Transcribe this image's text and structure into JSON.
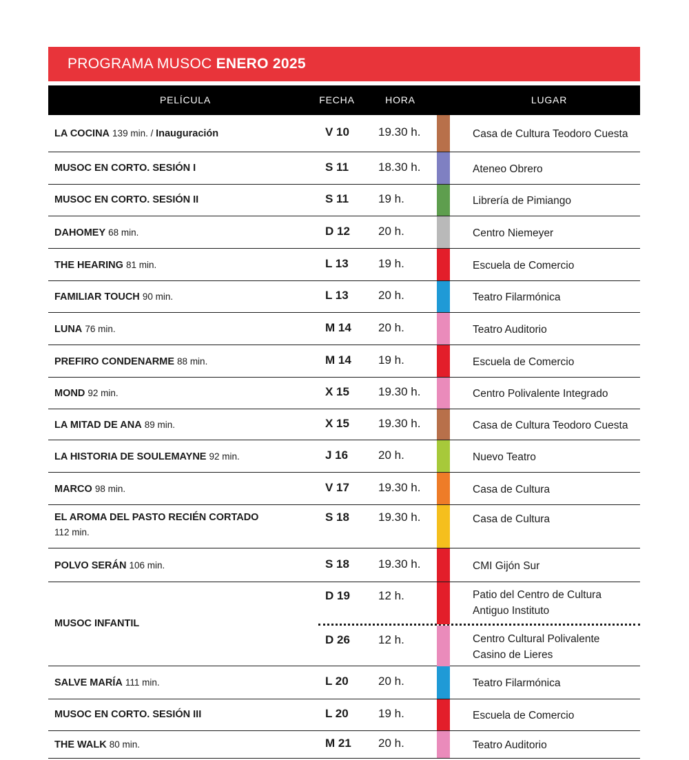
{
  "banner": {
    "title_regular": "PROGRAMA MUSOC",
    "title_bold": "ENERO 2025",
    "color": "#e8343a"
  },
  "columns": {
    "pelicula": "PELÍCULA",
    "fecha": "FECHA",
    "hora": "HORA",
    "lugar": "LUGAR"
  },
  "rows": [
    {
      "title": "LA COCINA",
      "minutes": "139 min.",
      "sep": " / ",
      "extra": "Inauguración",
      "fecha": "V 10",
      "hora": "19.30 h.",
      "lugar": "Casa de Cultura Teodoro Cuesta",
      "color": "#b8704a"
    },
    {
      "title": "MUSOC EN CORTO. SESIÓN I",
      "minutes": "",
      "fecha": "S 11",
      "hora": "18.30 h.",
      "lugar": "Ateneo Obrero",
      "color": "#7f80c2"
    },
    {
      "title": "MUSOC EN CORTO. SESIÓN II",
      "minutes": "",
      "fecha": "S 11",
      "hora": "19 h.",
      "lugar": "Librería de Pimiango",
      "color": "#5e9e4e"
    },
    {
      "title": "DAHOMEY",
      "minutes": "68 min.",
      "fecha": "D 12",
      "hora": "20 h.",
      "lugar": "Centro Niemeyer",
      "color": "#b9b9b9"
    },
    {
      "title": "THE HEARING",
      "minutes": "81 min.",
      "fecha": "L 13",
      "hora": "19 h.",
      "lugar": "Escuela de Comercio",
      "color": "#e31e2a"
    },
    {
      "title": "FAMILIAR TOUCH",
      "minutes": "90 min.",
      "fecha": "L 13",
      "hora": "20 h.",
      "lugar": "Teatro Filarmónica",
      "color": "#1f9ad6"
    },
    {
      "title": "LUNA",
      "minutes": "76 min.",
      "fecha": "M 14",
      "hora": "20 h.",
      "lugar": "Teatro Auditorio",
      "color": "#ea8bbb"
    },
    {
      "title": "PREFIRO CONDENARME",
      "minutes": "88 min.",
      "fecha": "M 14",
      "hora": "19 h.",
      "lugar": "Escuela de Comercio",
      "color": "#e31e2a"
    },
    {
      "title": "MOND",
      "minutes": "92 min.",
      "fecha": "X 15",
      "hora": "19.30 h.",
      "lugar": "Centro Polivalente Integrado",
      "color": "#ea8bbb"
    },
    {
      "title": "LA MITAD DE ANA",
      "minutes": "89 min.",
      "fecha": "X 15",
      "hora": "19.30 h.",
      "lugar": "Casa de Cultura Teodoro Cuesta",
      "color": "#b8704a"
    },
    {
      "title": "LA HISTORIA DE SOULEMAYNE",
      "minutes": "92 min.",
      "fecha": "J 16",
      "hora": "20 h.",
      "lugar": "Nuevo Teatro",
      "color": "#a7c93a"
    },
    {
      "title": "MARCO",
      "minutes": "98 min.",
      "fecha": "V 17",
      "hora": "19.30 h.",
      "lugar": "Casa de Cultura",
      "color": "#ee7c28"
    },
    {
      "title": "EL AROMA DEL PASTO RECIÉN CORTADO",
      "minutes": "112 min.",
      "wrap": true,
      "fecha": "S 18",
      "hora": "19.30 h.",
      "lugar": "Casa de Cultura",
      "color": "#f5bf1d"
    },
    {
      "title": "POLVO SERÁN",
      "minutes": "106 min.",
      "fecha": "S 18",
      "hora": "19.30 h.",
      "lugar": "CMI Gijón Sur",
      "color": "#e31e2a"
    },
    {
      "infantil": true,
      "title": "MUSOC INFANTIL",
      "sessions": [
        {
          "fecha": "D 19",
          "hora": "12 h.",
          "lugar": "Patio del Centro de Cultura Antiguo Instituto",
          "color": "#e31e2a"
        },
        {
          "fecha": "D 26",
          "hora": "12 h.",
          "lugar": "Centro Cultural Polivalente Casino de Lieres",
          "color": "#ea8bbb"
        }
      ]
    },
    {
      "title": "SALVE MARÍA",
      "minutes": "111 min.",
      "fecha": "L 20",
      "hora": "20 h.",
      "lugar": "Teatro Filarmónica",
      "color": "#1f9ad6"
    },
    {
      "title": "MUSOC EN CORTO. SESIÓN III",
      "minutes": "",
      "fecha": "L 20",
      "hora": "19 h.",
      "lugar": "Escuela de Comercio",
      "color": "#e31e2a"
    },
    {
      "title": "THE WALK",
      "minutes": "80 min.",
      "fecha": "M 21",
      "hora": "20 h.",
      "lugar": "Teatro Auditorio",
      "color": "#ea8bbb"
    }
  ]
}
